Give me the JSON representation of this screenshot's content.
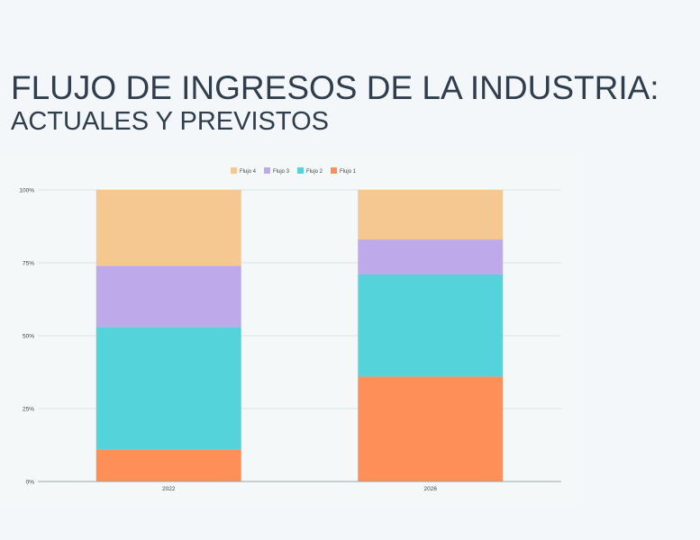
{
  "page": {
    "title_line1": "FLUJO DE INGRESOS DE LA INDUSTRIA:",
    "title_line2": "ACTUALES Y PREVISTOS"
  },
  "colors": {
    "Flujo 1": "#ff8f59",
    "Flujo 2": "#54d4da",
    "Flujo 3": "#bea9eb",
    "Flujo 4": "#f6c891",
    "grid": "#dde3e6",
    "axis": "#9aa3a8",
    "tick_text": "#444444"
  },
  "chart_data": {
    "type": "bar",
    "stacked": true,
    "normalized": true,
    "categories": [
      "2022",
      "2026"
    ],
    "series": [
      {
        "name": "Flujo 1",
        "values": [
          11,
          36
        ]
      },
      {
        "name": "Flujo 2",
        "values": [
          42,
          35
        ]
      },
      {
        "name": "Flujo 3",
        "values": [
          21,
          12
        ]
      },
      {
        "name": "Flujo 4",
        "values": [
          26,
          17
        ]
      }
    ],
    "legend_order": [
      "Flujo 4",
      "Flujo 3",
      "Flujo 2",
      "Flujo 1"
    ],
    "legend_position": "top-center",
    "y_ticks": [
      "0%",
      "25%",
      "50%",
      "75%",
      "100%"
    ],
    "ylim": [
      0,
      100
    ],
    "grid": true,
    "title": "",
    "xlabel": "",
    "ylabel": ""
  }
}
